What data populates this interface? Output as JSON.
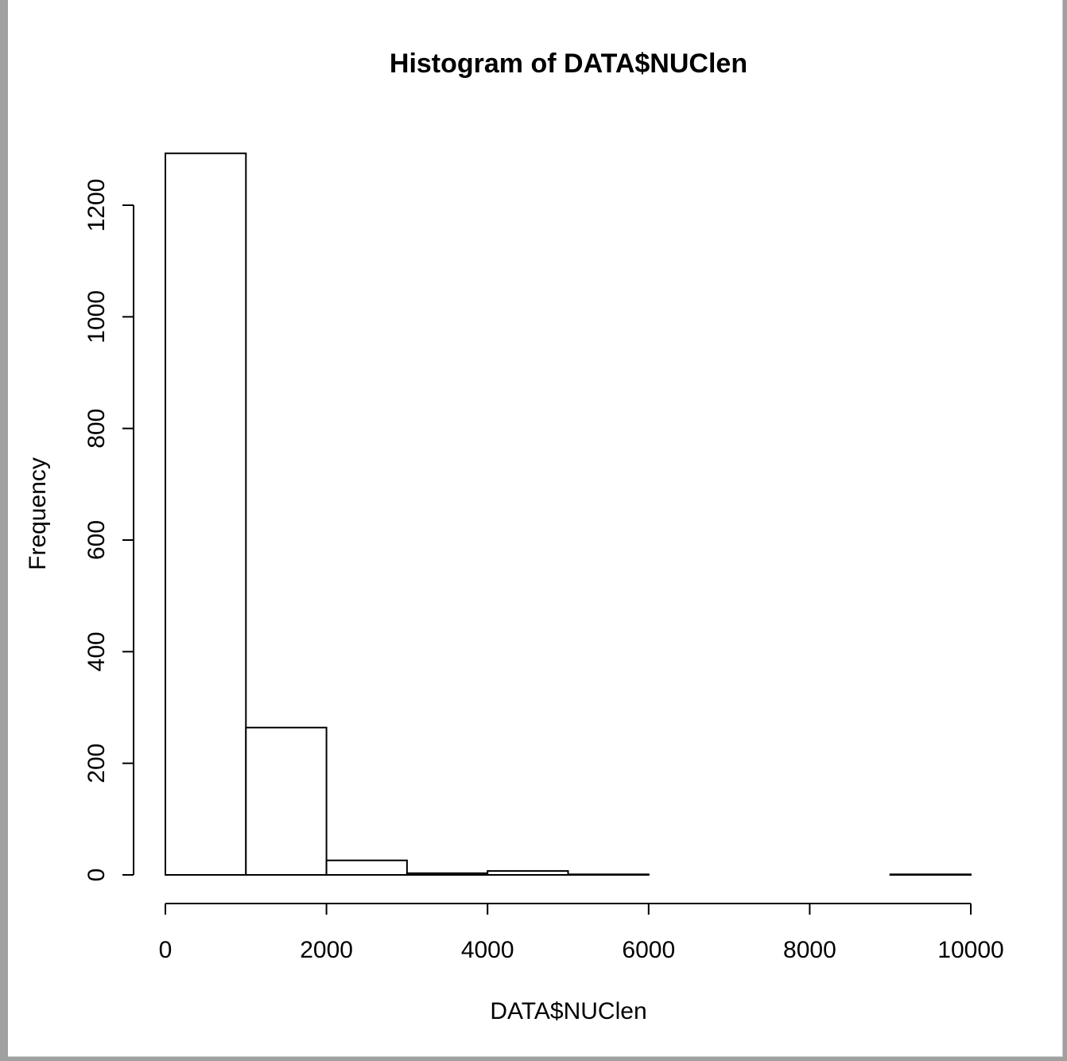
{
  "chart_data": {
    "type": "bar",
    "title": "Histogram of DATA$NUClen",
    "xlabel": "DATA$NUClen",
    "ylabel": "Frequency",
    "bins": [
      {
        "start": 0,
        "end": 1000,
        "value": 1293
      },
      {
        "start": 1000,
        "end": 2000,
        "value": 264
      },
      {
        "start": 2000,
        "end": 3000,
        "value": 26
      },
      {
        "start": 3000,
        "end": 4000,
        "value": 3
      },
      {
        "start": 4000,
        "end": 5000,
        "value": 7
      },
      {
        "start": 5000,
        "end": 6000,
        "value": 1
      },
      {
        "start": 6000,
        "end": 7000,
        "value": 0
      },
      {
        "start": 7000,
        "end": 8000,
        "value": 0
      },
      {
        "start": 8000,
        "end": 9000,
        "value": 0
      },
      {
        "start": 9000,
        "end": 10000,
        "value": 1
      }
    ],
    "xlim": [
      0,
      10000
    ],
    "ylim": [
      0,
      1293
    ],
    "x_ticks": [
      0,
      2000,
      4000,
      6000,
      8000,
      10000
    ],
    "x_tick_labels": [
      "0",
      "2000",
      "4000",
      "6000",
      "8000",
      "10000"
    ],
    "y_ticks": [
      0,
      200,
      400,
      600,
      800,
      1000,
      1200
    ],
    "y_tick_labels": [
      "0",
      "200",
      "400",
      "600",
      "800",
      "1000",
      "1200"
    ],
    "bar_fill": "#ffffff",
    "bar_stroke": "#000000",
    "grid": false,
    "legend": "none"
  }
}
